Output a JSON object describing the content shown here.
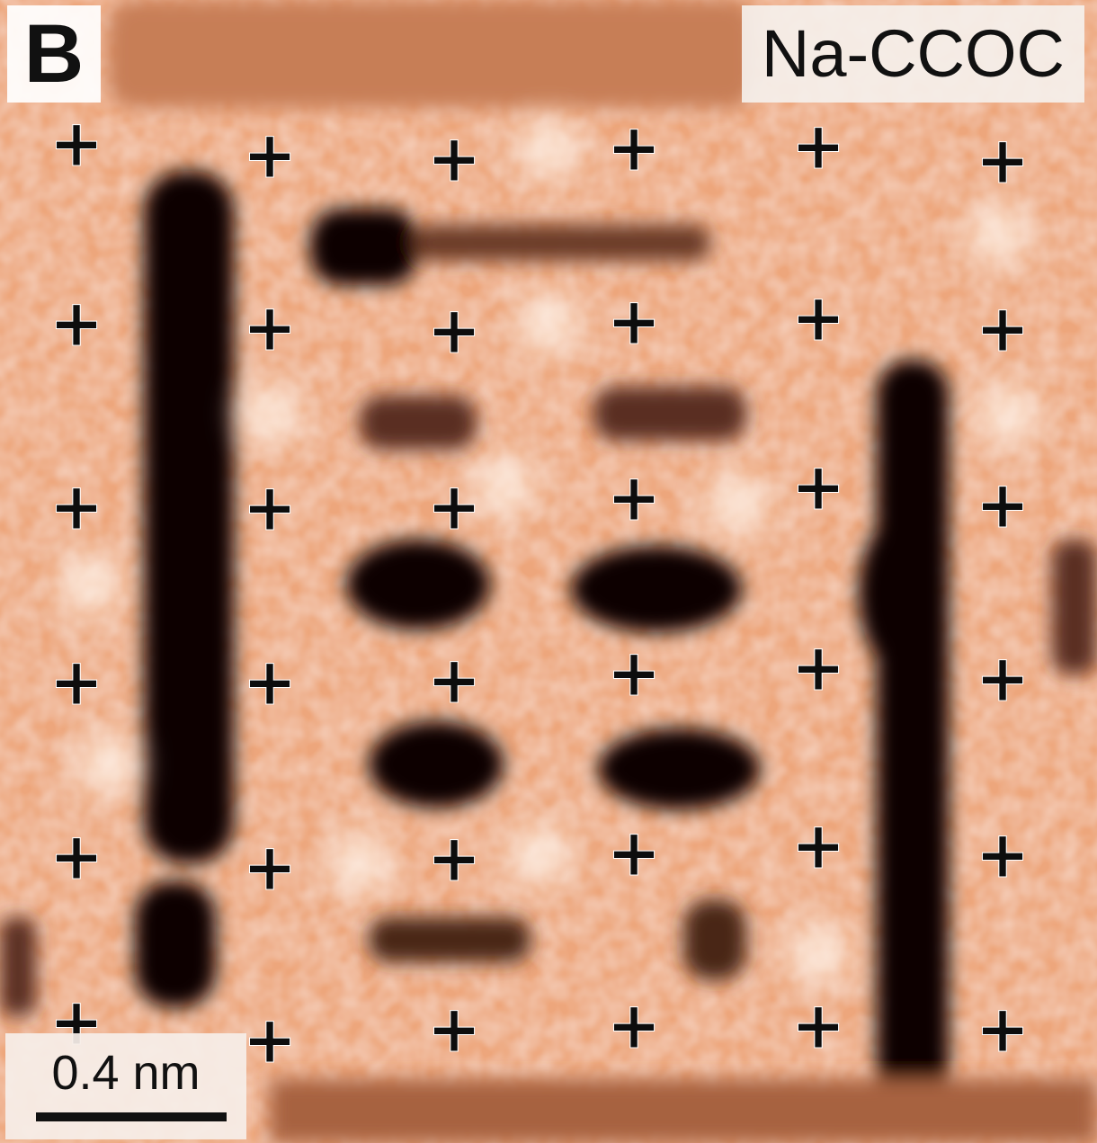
{
  "panel_label": "B",
  "sample_label": "Na-CCOC",
  "scale_bar": {
    "label": "0.4 nm"
  },
  "palette": {
    "dark": "#0a0605",
    "mid": "#c77e57",
    "light": "#f4b58a",
    "bright": "#fff5ec",
    "marker": "#0d0d0d"
  },
  "markers": {
    "symbol": "+",
    "rows": 6,
    "columns": 6
  }
}
